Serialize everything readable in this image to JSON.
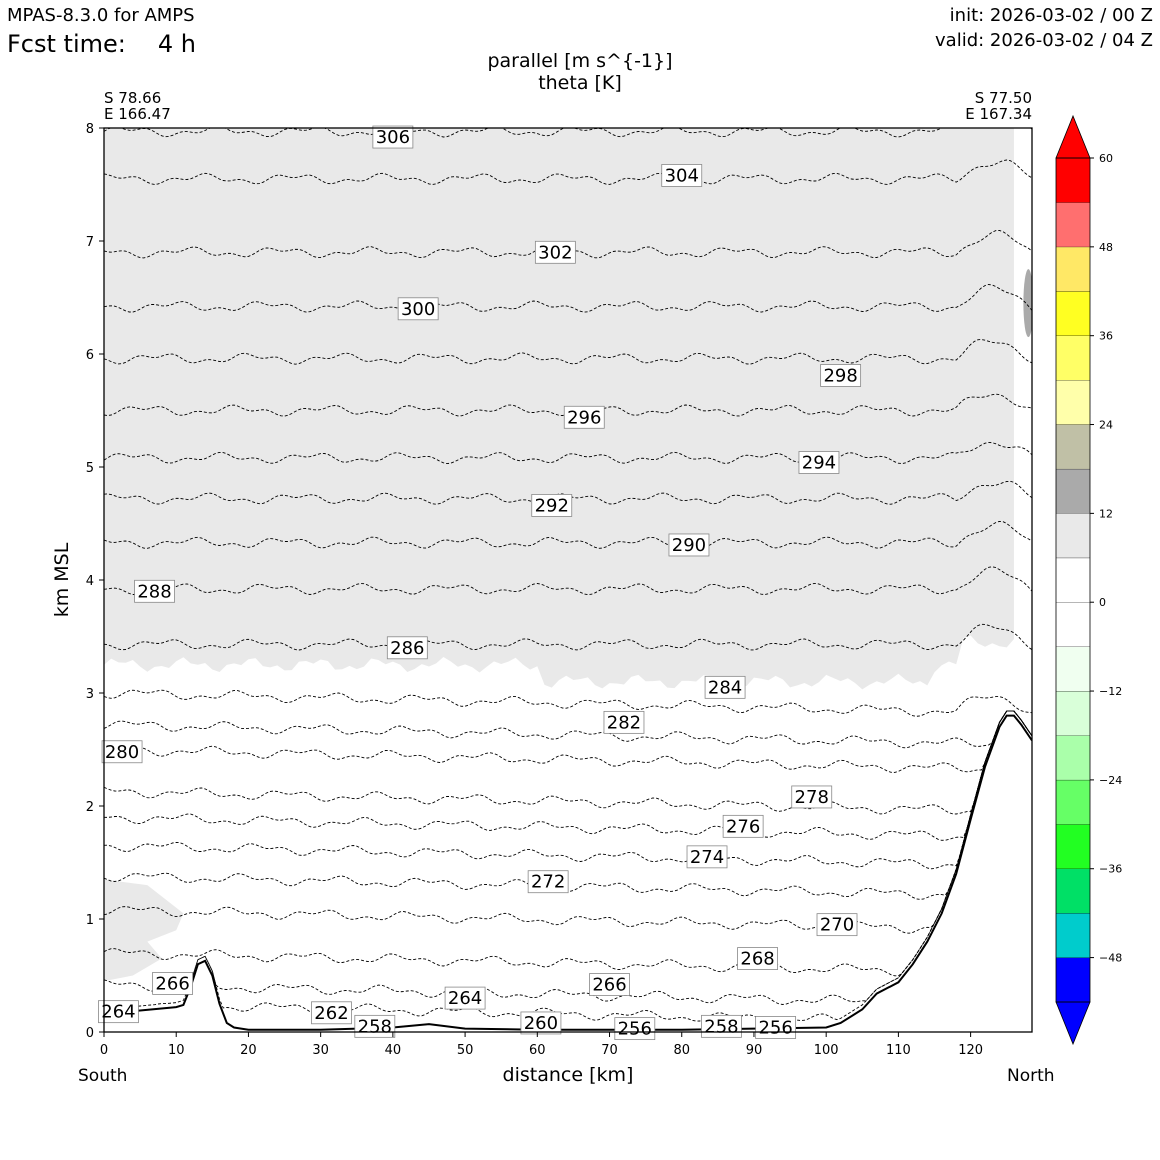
{
  "header": {
    "model": "MPAS-8.3.0 for AMPS",
    "fcst_label": "Fcst time:",
    "fcst_value": "4 h",
    "init": "init: 2026-03-02 / 00 Z",
    "valid": "valid: 2026-03-02 / 04 Z"
  },
  "chart_data": {
    "type": "cross-section",
    "title": "parallel [m s^{-1}]",
    "subtitle": "theta [K]",
    "xlabel": "distance [km]",
    "ylabel": "km MSL",
    "xlim": [
      0,
      128.5
    ],
    "ylim": [
      0,
      8
    ],
    "xticks": [
      0,
      10,
      20,
      30,
      40,
      50,
      60,
      70,
      80,
      90,
      100,
      110,
      120
    ],
    "yticks": [
      0,
      1,
      2,
      3,
      4,
      5,
      6,
      7,
      8
    ],
    "start_point": {
      "lat": "S 78.66",
      "lon": "E 166.47"
    },
    "end_point": {
      "lat": "S 77.50",
      "lon": "E 167.34"
    },
    "south_label": "South",
    "north_label": "North",
    "terrain": [
      [
        0,
        0.16
      ],
      [
        5,
        0.19
      ],
      [
        10,
        0.22
      ],
      [
        11,
        0.24
      ],
      [
        12,
        0.4
      ],
      [
        13,
        0.6
      ],
      [
        14,
        0.63
      ],
      [
        15,
        0.5
      ],
      [
        16,
        0.25
      ],
      [
        17,
        0.08
      ],
      [
        18,
        0.04
      ],
      [
        20,
        0.02
      ],
      [
        30,
        0.02
      ],
      [
        40,
        0.04
      ],
      [
        45,
        0.07
      ],
      [
        50,
        0.03
      ],
      [
        60,
        0.02
      ],
      [
        70,
        0.02
      ],
      [
        80,
        0.02
      ],
      [
        90,
        0.03
      ],
      [
        100,
        0.04
      ],
      [
        102,
        0.08
      ],
      [
        105,
        0.2
      ],
      [
        107,
        0.34
      ],
      [
        110,
        0.44
      ],
      [
        112,
        0.6
      ],
      [
        114,
        0.8
      ],
      [
        116,
        1.05
      ],
      [
        118,
        1.4
      ],
      [
        120,
        1.88
      ],
      [
        122,
        2.35
      ],
      [
        124,
        2.7
      ],
      [
        125,
        2.8
      ],
      [
        126,
        2.8
      ],
      [
        127,
        2.72
      ],
      [
        128.5,
        2.58
      ]
    ],
    "theta_contours": [
      {
        "theta": 306,
        "y0": 7.97
      },
      {
        "theta": 304,
        "y0": 7.55
      },
      {
        "theta": 302,
        "y0": 6.9
      },
      {
        "theta": 300,
        "y0": 6.42
      },
      {
        "theta": 298,
        "y0": 5.96
      },
      {
        "theta": 296,
        "y0": 5.5
      },
      {
        "theta": 294,
        "y0": 5.08
      },
      {
        "theta": 292,
        "y0": 4.72
      },
      {
        "theta": 290,
        "y0": 4.33
      },
      {
        "theta": 288,
        "y0": 3.92
      },
      {
        "theta": 286,
        "y0": 3.43
      },
      {
        "theta": 284,
        "y0": 3.0
      },
      {
        "theta": 282,
        "y0": 2.72
      },
      {
        "theta": 280,
        "y0": 2.5
      },
      {
        "theta": 278,
        "y0": 2.13
      },
      {
        "theta": 276,
        "y0": 1.9
      },
      {
        "theta": 274,
        "y0": 1.65
      },
      {
        "theta": 272,
        "y0": 1.38
      },
      {
        "theta": 270,
        "y0": 1.08
      },
      {
        "theta": 268,
        "y0": 0.7
      },
      {
        "theta": 266,
        "y0": 0.42
      },
      {
        "theta": 264,
        "y0": 0.25
      }
    ],
    "theta_labels": [
      {
        "text": "306",
        "x": 40,
        "y": 7.92
      },
      {
        "text": "304",
        "x": 80,
        "y": 7.58
      },
      {
        "text": "302",
        "x": 62.5,
        "y": 6.9
      },
      {
        "text": "300",
        "x": 43.5,
        "y": 6.4
      },
      {
        "text": "298",
        "x": 102,
        "y": 5.81
      },
      {
        "text": "296",
        "x": 66.5,
        "y": 5.44
      },
      {
        "text": "294",
        "x": 99,
        "y": 5.04
      },
      {
        "text": "292",
        "x": 62,
        "y": 4.66
      },
      {
        "text": "290",
        "x": 81,
        "y": 4.31
      },
      {
        "text": "288",
        "x": 7,
        "y": 3.9
      },
      {
        "text": "286",
        "x": 42,
        "y": 3.4
      },
      {
        "text": "284",
        "x": 86,
        "y": 3.05
      },
      {
        "text": "282",
        "x": 72,
        "y": 2.74
      },
      {
        "text": "280",
        "x": 2.5,
        "y": 2.48
      },
      {
        "text": "278",
        "x": 98,
        "y": 2.08
      },
      {
        "text": "276",
        "x": 88.5,
        "y": 1.82
      },
      {
        "text": "274",
        "x": 83.5,
        "y": 1.55
      },
      {
        "text": "272",
        "x": 61.5,
        "y": 1.33
      },
      {
        "text": "270",
        "x": 101.5,
        "y": 0.95
      },
      {
        "text": "268",
        "x": 90.5,
        "y": 0.65
      },
      {
        "text": "266",
        "x": 70,
        "y": 0.42
      },
      {
        "text": "266",
        "x": 9.5,
        "y": 0.43
      },
      {
        "text": "264",
        "x": 50,
        "y": 0.3
      },
      {
        "text": "264",
        "x": 2,
        "y": 0.18
      },
      {
        "text": "262",
        "x": 31.5,
        "y": 0.17
      },
      {
        "text": "260",
        "x": 60.5,
        "y": 0.08
      },
      {
        "text": "258",
        "x": 37.5,
        "y": 0.05
      },
      {
        "text": "258",
        "x": 85.5,
        "y": 0.05
      },
      {
        "text": "256",
        "x": 73.5,
        "y": 0.03
      },
      {
        "text": "256",
        "x": 93,
        "y": 0.04
      }
    ],
    "shaded_region": {
      "field": "parallel",
      "range": [
        6,
        12
      ],
      "color": "#e9e9e9",
      "x": [
        0,
        126
      ],
      "y": [
        3.2,
        8
      ]
    },
    "colorbar": {
      "levels": [
        -54,
        -48,
        -42,
        -36,
        -30,
        -24,
        -18,
        -12,
        -6,
        0,
        6,
        12,
        18,
        24,
        30,
        36,
        42,
        48,
        54,
        60
      ],
      "tick_labels": [
        "60",
        "48",
        "36",
        "24",
        "12",
        "0",
        "−12",
        "−24",
        "−36",
        "−48"
      ],
      "tick_values": [
        60,
        48,
        36,
        24,
        12,
        0,
        -12,
        -24,
        -36,
        -48
      ],
      "colors": [
        "#0000ff",
        "#00cccc",
        "#00e066",
        "#22ff22",
        "#66ff66",
        "#aaffaa",
        "#d9ffd9",
        "#f0fff0",
        "#ffffff",
        "#ffffff",
        "#e9e9e9",
        "#aaaaaa",
        "#c0c0a6",
        "#ffffaa",
        "#ffff66",
        "#ffff22",
        "#ffe866",
        "#ff6f6f",
        "#ff0000"
      ],
      "over_color": "#ff0000",
      "under_color": "#0000ff"
    }
  }
}
